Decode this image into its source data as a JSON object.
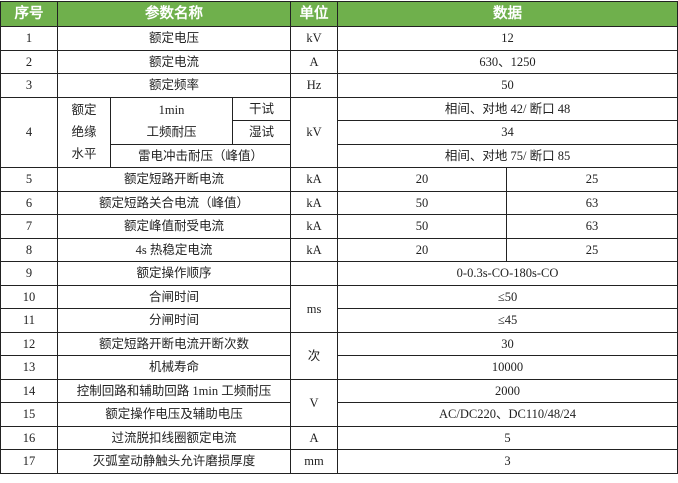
{
  "header": {
    "seq": "序号",
    "param": "参数名称",
    "unit": "单位",
    "data": "数据"
  },
  "colors": {
    "header_bg": "#6fb04c",
    "header_text": "#ffffff"
  },
  "rows": {
    "r1": {
      "seq": "1",
      "name": "额定电压",
      "unit": "kV",
      "value": "12"
    },
    "r2": {
      "seq": "2",
      "name": "额定电流",
      "unit": "A",
      "value": "630、1250"
    },
    "r3": {
      "seq": "3",
      "name": "额定频率",
      "unit": "Hz",
      "value": "50"
    },
    "r4": {
      "seq": "4",
      "group": "额定绝缘水平",
      "group_lines": [
        "额定",
        "绝缘",
        "水平"
      ],
      "pf_lines": [
        "1min",
        "工频耐压"
      ],
      "dry": "干试",
      "wet": "湿试",
      "impulse": "雷电冲击耐压（峰值）",
      "unit": "kV",
      "dry_value": "相间、对地 42/ 断口 48",
      "wet_value": "34",
      "impulse_value": "相间、对地 75/ 断口 85"
    },
    "r5": {
      "seq": "5",
      "name": "额定短路开断电流",
      "unit": "kA",
      "v1": "20",
      "v2": "25"
    },
    "r6": {
      "seq": "6",
      "name": "额定短路关合电流（峰值）",
      "unit": "kA",
      "v1": "50",
      "v2": "63"
    },
    "r7": {
      "seq": "7",
      "name": "额定峰值耐受电流",
      "unit": "kA",
      "v1": "50",
      "v2": "63"
    },
    "r8": {
      "seq": "8",
      "name": "4s 热稳定电流",
      "unit": "kA",
      "v1": "20",
      "v2": "25"
    },
    "r9": {
      "seq": "9",
      "name": "额定操作顺序",
      "unit": "",
      "value": "0-0.3s-CO-180s-CO"
    },
    "r10": {
      "seq": "10",
      "name": "合闸时间",
      "unit": "ms",
      "value": "≤50"
    },
    "r11": {
      "seq": "11",
      "name": "分闸时间",
      "value": "≤45"
    },
    "r12": {
      "seq": "12",
      "name": "额定短路开断电流开断次数",
      "unit": "次",
      "value": "30"
    },
    "r13": {
      "seq": "13",
      "name": "机械寿命",
      "value": "10000"
    },
    "r14": {
      "seq": "14",
      "name": "控制回路和辅助回路 1min 工频耐压",
      "unit": "V",
      "value": "2000"
    },
    "r15": {
      "seq": "15",
      "name": "额定操作电压及辅助电压",
      "value": "AC/DC220、DC110/48/24"
    },
    "r16": {
      "seq": "16",
      "name": "过流脱扣线圈额定电流",
      "unit": "A",
      "value": "5"
    },
    "r17": {
      "seq": "17",
      "name": "灭弧室动静触头允许磨损厚度",
      "unit": "mm",
      "value": "3"
    }
  }
}
